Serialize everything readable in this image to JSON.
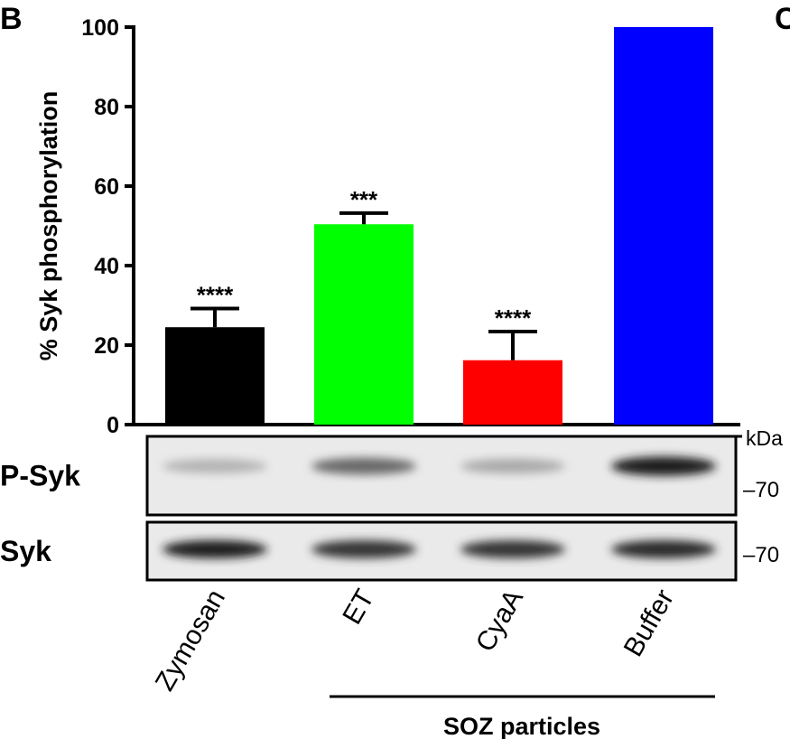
{
  "panel_label": "B",
  "next_panel_label": "C",
  "chart_data": {
    "type": "bar",
    "ylabel": "% Syk phosphorylation",
    "ylim": [
      0,
      100
    ],
    "yticks": [
      0,
      20,
      40,
      60,
      80,
      100
    ],
    "categories": [
      "Zymosan",
      "ET",
      "CyaA",
      "Buffer"
    ],
    "values": [
      24.5,
      50.4,
      16.2,
      100
    ],
    "error_plus": [
      4.7,
      2.8,
      7.2,
      0
    ],
    "colors": [
      "#000000",
      "#00ff00",
      "#ff0000",
      "#0000ff"
    ],
    "significance": [
      "****",
      "***",
      "****",
      ""
    ],
    "group_label": "SOZ particles",
    "group_members": [
      "ET",
      "CyaA",
      "Buffer"
    ],
    "grid": false
  },
  "blot": {
    "unit_label": "kDa",
    "rows": [
      {
        "label": "P-Syk",
        "marker": "70",
        "intensities": [
          0.2,
          0.55,
          0.25,
          0.9
        ]
      },
      {
        "label": "Syk",
        "marker": "70",
        "intensities": [
          0.9,
          0.8,
          0.8,
          0.85
        ]
      }
    ]
  }
}
